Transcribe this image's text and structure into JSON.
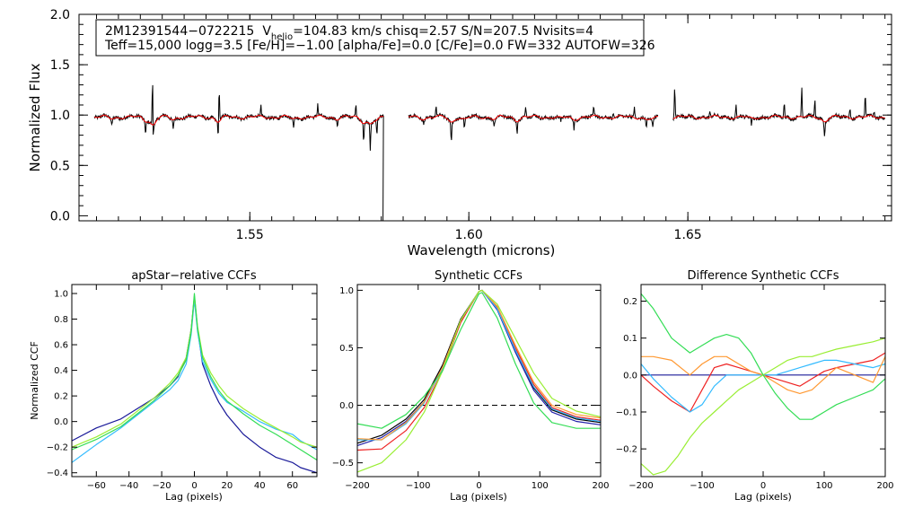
{
  "chart_data": [
    {
      "id": "spectrum",
      "type": "line",
      "title": "",
      "xlabel": "Wavelength (microns)",
      "ylabel": "Normalized Flux",
      "xlim": [
        1.511,
        1.6965
      ],
      "ylim": [
        -0.05,
        2.0
      ],
      "xticks": [
        1.55,
        1.6,
        1.65
      ],
      "xtick_labels": [
        "1.55",
        "1.60",
        "1.65"
      ],
      "yticks": [
        0.0,
        0.5,
        1.0,
        1.5,
        2.0
      ],
      "ytick_labels": [
        "0.0",
        "0.5",
        "1.0",
        "1.5",
        "2.0"
      ],
      "detectors": [
        [
          1.5145,
          1.5805
        ],
        [
          1.5862,
          1.6432
        ],
        [
          1.6466,
          1.695
        ]
      ],
      "annotation": {
        "line1_id": "2M12391544−0722215",
        "line1_v": "V",
        "line1_vsub": "helio",
        "line1_rest": "=104.83 km/s  chisq=2.57  S/N=207.5  Nvisits=4",
        "line2": "Teff=15,000 logg=3.5 [Fe/H]=−1.00 [alpha/Fe]=0.0 [C/Fe]=0.0 FW=332 AUTOFW=326"
      },
      "series": [
        {
          "name": "observed",
          "color": "#000000"
        },
        {
          "name": "model",
          "color": "#ff0000"
        }
      ],
      "features": [
        {
          "x": 1.5185,
          "depth": -0.05
        },
        {
          "x": 1.5262,
          "depth": -0.13
        },
        {
          "x": 1.5278,
          "depth": 0.6
        },
        {
          "x": 1.5279,
          "depth": -0.3
        },
        {
          "x": 1.5325,
          "depth": -0.1
        },
        {
          "x": 1.5428,
          "depth": -0.17
        },
        {
          "x": 1.543,
          "depth": 0.35
        },
        {
          "x": 1.5525,
          "depth": 0.1
        },
        {
          "x": 1.56,
          "depth": -0.08
        },
        {
          "x": 1.5655,
          "depth": 0.12
        },
        {
          "x": 1.57,
          "depth": -0.06
        },
        {
          "x": 1.5742,
          "depth": 0.12
        },
        {
          "x": 1.576,
          "depth": -0.18
        },
        {
          "x": 1.5775,
          "depth": -0.25
        },
        {
          "x": 1.579,
          "depth": -0.15
        },
        {
          "x": 1.5897,
          "depth": -0.05
        },
        {
          "x": 1.5925,
          "depth": 0.1
        },
        {
          "x": 1.596,
          "depth": -0.2
        },
        {
          "x": 1.599,
          "depth": -0.1
        },
        {
          "x": 1.6058,
          "depth": -0.07
        },
        {
          "x": 1.611,
          "depth": -0.11
        },
        {
          "x": 1.613,
          "depth": 0.1
        },
        {
          "x": 1.621,
          "depth": -0.06
        },
        {
          "x": 1.624,
          "depth": -0.09
        },
        {
          "x": 1.6285,
          "depth": 0.08
        },
        {
          "x": 1.633,
          "depth": 0.06
        },
        {
          "x": 1.6378,
          "depth": 0.12
        },
        {
          "x": 1.6405,
          "depth": -0.08
        },
        {
          "x": 1.642,
          "depth": -0.1
        },
        {
          "x": 1.647,
          "depth": 0.3
        },
        {
          "x": 1.655,
          "depth": 0.06
        },
        {
          "x": 1.661,
          "depth": 0.12
        },
        {
          "x": 1.6645,
          "depth": -0.07
        },
        {
          "x": 1.672,
          "depth": 0.15
        },
        {
          "x": 1.676,
          "depth": 0.3
        },
        {
          "x": 1.679,
          "depth": 0.18
        },
        {
          "x": 1.6812,
          "depth": -0.16
        },
        {
          "x": 1.687,
          "depth": 0.1
        },
        {
          "x": 1.6905,
          "depth": 0.22
        },
        {
          "x": 1.6925,
          "depth": 0.05
        }
      ],
      "gap_drop": {
        "x": 1.5804,
        "y": -0.05
      }
    },
    {
      "id": "apstar_ccf",
      "type": "line",
      "title": "apStar−relative CCFs",
      "xlabel": "Lag (pixels)",
      "ylabel": "Normalized CCF",
      "xlim": [
        -75,
        75
      ],
      "ylim": [
        -0.43,
        1.07
      ],
      "xticks": [
        -60,
        -40,
        -20,
        0,
        20,
        40,
        60
      ],
      "xtick_labels": [
        "−60",
        "−40",
        "−20",
        "0",
        "20",
        "40",
        "60"
      ],
      "yticks": [
        -0.4,
        -0.2,
        0.0,
        0.2,
        0.4,
        0.6,
        0.8,
        1.0
      ],
      "ytick_labels": [
        "−0.4",
        "−0.2",
        "0.0",
        "0.2",
        "0.4",
        "0.6",
        "0.8",
        "1.0"
      ],
      "series": [
        {
          "name": "visit 1",
          "color": "#1a1a99",
          "x": [
            -75,
            -60,
            -45,
            -35,
            -25,
            -15,
            -10,
            -5,
            -2,
            0,
            2,
            5,
            10,
            15,
            20,
            30,
            40,
            50,
            60,
            65,
            75
          ],
          "y": [
            -0.15,
            -0.05,
            0.02,
            0.1,
            0.18,
            0.28,
            0.35,
            0.5,
            0.72,
            0.97,
            0.72,
            0.45,
            0.28,
            0.15,
            0.05,
            -0.1,
            -0.2,
            -0.28,
            -0.32,
            -0.36,
            -0.4
          ]
        },
        {
          "name": "visit 2",
          "color": "#33bbff",
          "x": [
            -75,
            -60,
            -45,
            -35,
            -25,
            -15,
            -10,
            -5,
            -2,
            0,
            2,
            5,
            10,
            15,
            20,
            30,
            40,
            50,
            60,
            65,
            75
          ],
          "y": [
            -0.32,
            -0.18,
            -0.05,
            0.05,
            0.15,
            0.25,
            0.32,
            0.45,
            0.68,
            0.95,
            0.7,
            0.47,
            0.33,
            0.22,
            0.15,
            0.08,
            0.0,
            -0.06,
            -0.1,
            -0.15,
            -0.22
          ]
        },
        {
          "name": "visit 3",
          "color": "#99ee33",
          "x": [
            -75,
            -60,
            -45,
            -35,
            -25,
            -15,
            -10,
            -5,
            -2,
            0,
            2,
            5,
            10,
            15,
            20,
            30,
            40,
            50,
            60,
            65,
            75
          ],
          "y": [
            -0.2,
            -0.12,
            -0.02,
            0.08,
            0.18,
            0.3,
            0.38,
            0.5,
            0.72,
            0.98,
            0.74,
            0.52,
            0.38,
            0.28,
            0.2,
            0.1,
            0.02,
            -0.05,
            -0.12,
            -0.16,
            -0.2
          ]
        },
        {
          "name": "visit 4",
          "color": "#33dd55",
          "x": [
            -75,
            -60,
            -45,
            -35,
            -25,
            -15,
            -10,
            -5,
            -2,
            0,
            2,
            5,
            10,
            15,
            20,
            30,
            40,
            50,
            60,
            65,
            75
          ],
          "y": [
            -0.22,
            -0.14,
            -0.04,
            0.06,
            0.16,
            0.28,
            0.36,
            0.48,
            0.7,
            1.0,
            0.72,
            0.5,
            0.35,
            0.24,
            0.16,
            0.06,
            -0.03,
            -0.1,
            -0.18,
            -0.22,
            -0.3
          ]
        }
      ]
    },
    {
      "id": "synthetic_ccf",
      "type": "line",
      "title": "Synthetic CCFs",
      "xlabel": "Lag (pixels)",
      "ylabel": "",
      "xlim": [
        -200,
        200
      ],
      "ylim": [
        -0.62,
        1.05
      ],
      "xticks": [
        -200,
        -100,
        0,
        100,
        200
      ],
      "xtick_labels": [
        "−200",
        "−100",
        "0",
        "100",
        "200"
      ],
      "yticks": [
        -0.5,
        0.0,
        0.5,
        1.0
      ],
      "ytick_labels": [
        "−0.5",
        "0.0",
        "0.5",
        "1.0"
      ],
      "zero_line": 0.0,
      "series": [
        {
          "name": "synth 1",
          "color": "#000000",
          "x": [
            -200,
            -160,
            -120,
            -90,
            -60,
            -30,
            0,
            5,
            30,
            60,
            90,
            120,
            160,
            200
          ],
          "y": [
            -0.33,
            -0.26,
            -0.12,
            0.05,
            0.35,
            0.75,
            0.99,
            1.0,
            0.84,
            0.48,
            0.15,
            -0.04,
            -0.12,
            -0.15
          ]
        },
        {
          "name": "synth 2",
          "color": "#2222aa",
          "x": [
            -200,
            -160,
            -120,
            -90,
            -60,
            -30,
            0,
            5,
            30,
            60,
            90,
            120,
            160,
            200
          ],
          "y": [
            -0.35,
            -0.28,
            -0.14,
            0.03,
            0.33,
            0.73,
            0.99,
            1.0,
            0.83,
            0.46,
            0.13,
            -0.06,
            -0.14,
            -0.17
          ]
        },
        {
          "name": "synth 3",
          "color": "#ee2222",
          "x": [
            -200,
            -160,
            -120,
            -90,
            -60,
            -30,
            0,
            5,
            30,
            60,
            90,
            120,
            160,
            200
          ],
          "y": [
            -0.39,
            -0.38,
            -0.22,
            -0.02,
            0.3,
            0.72,
            0.99,
            1.0,
            0.85,
            0.5,
            0.18,
            -0.02,
            -0.1,
            -0.13
          ]
        },
        {
          "name": "synth 4",
          "color": "#33bbff",
          "x": [
            -200,
            -160,
            -120,
            -90,
            -60,
            -30,
            0,
            5,
            30,
            60,
            90,
            120,
            160,
            200
          ],
          "y": [
            -0.3,
            -0.3,
            -0.16,
            0.02,
            0.32,
            0.74,
            0.99,
            1.0,
            0.84,
            0.48,
            0.16,
            -0.03,
            -0.11,
            -0.14
          ]
        },
        {
          "name": "synth 5",
          "color": "#ff9933",
          "x": [
            -200,
            -160,
            -120,
            -90,
            -60,
            -30,
            0,
            5,
            30,
            60,
            90,
            120,
            160,
            200
          ],
          "y": [
            -0.29,
            -0.3,
            -0.15,
            0.03,
            0.33,
            0.74,
            0.99,
            1.0,
            0.86,
            0.52,
            0.2,
            0.0,
            -0.08,
            -0.11
          ]
        },
        {
          "name": "synth 6",
          "color": "#99ee33",
          "x": [
            -200,
            -160,
            -120,
            -90,
            -60,
            -30,
            0,
            5,
            30,
            60,
            90,
            120,
            160,
            200
          ],
          "y": [
            -0.58,
            -0.5,
            -0.3,
            -0.06,
            0.3,
            0.74,
            0.99,
            1.0,
            0.88,
            0.58,
            0.28,
            0.06,
            -0.05,
            -0.1
          ]
        },
        {
          "name": "synth 7",
          "color": "#33dd55",
          "x": [
            -200,
            -160,
            -120,
            -90,
            -60,
            -30,
            0,
            5,
            30,
            60,
            90,
            120,
            160,
            200
          ],
          "y": [
            -0.16,
            -0.2,
            -0.08,
            0.08,
            0.3,
            0.66,
            0.97,
            0.98,
            0.76,
            0.36,
            0.02,
            -0.15,
            -0.2,
            -0.2
          ]
        }
      ]
    },
    {
      "id": "diff_ccf",
      "type": "line",
      "title": "Difference Synthetic CCFs",
      "xlabel": "Lag (pixels)",
      "ylabel": "",
      "xlim": [
        -200,
        200
      ],
      "ylim": [
        -0.275,
        0.245
      ],
      "xticks": [
        -200,
        -100,
        0,
        100,
        200
      ],
      "xtick_labels": [
        "−200",
        "−100",
        "0",
        "100",
        "200"
      ],
      "yticks": [
        -0.2,
        -0.1,
        0.0,
        0.1,
        0.2
      ],
      "ytick_labels": [
        "−0.2",
        "−0.1",
        "0.0",
        "0.1",
        "0.2"
      ],
      "series": [
        {
          "name": "diff 1",
          "color": "#1a1a99",
          "x": [
            -200,
            200
          ],
          "y": [
            0.0,
            0.0
          ]
        },
        {
          "name": "diff 2",
          "color": "#ee2222",
          "x": [
            -200,
            -180,
            -150,
            -120,
            -100,
            -80,
            -60,
            -40,
            -20,
            0,
            20,
            40,
            60,
            80,
            100,
            120,
            150,
            180,
            200
          ],
          "y": [
            0.0,
            -0.03,
            -0.07,
            -0.1,
            -0.04,
            0.02,
            0.03,
            0.02,
            0.01,
            0.0,
            -0.01,
            -0.02,
            -0.03,
            -0.01,
            0.01,
            0.02,
            0.03,
            0.04,
            0.06
          ]
        },
        {
          "name": "diff 3",
          "color": "#33bbff",
          "x": [
            -200,
            -180,
            -150,
            -120,
            -100,
            -80,
            -60,
            -40,
            -20,
            0,
            20,
            40,
            60,
            80,
            100,
            120,
            150,
            180,
            200
          ],
          "y": [
            0.03,
            -0.01,
            -0.06,
            -0.1,
            -0.08,
            -0.03,
            0.0,
            0.0,
            0.0,
            0.0,
            0.0,
            0.01,
            0.02,
            0.03,
            0.04,
            0.04,
            0.03,
            0.02,
            0.03
          ]
        },
        {
          "name": "diff 4",
          "color": "#ff9933",
          "x": [
            -200,
            -180,
            -150,
            -120,
            -100,
            -80,
            -60,
            -40,
            -20,
            0,
            20,
            40,
            60,
            80,
            100,
            120,
            150,
            180,
            200
          ],
          "y": [
            0.05,
            0.05,
            0.04,
            0.0,
            0.03,
            0.05,
            0.05,
            0.03,
            0.01,
            0.0,
            -0.02,
            -0.04,
            -0.05,
            -0.04,
            -0.01,
            0.02,
            0.0,
            -0.02,
            0.05
          ]
        },
        {
          "name": "diff 5",
          "color": "#99ee33",
          "x": [
            -200,
            -180,
            -160,
            -140,
            -120,
            -100,
            -80,
            -60,
            -40,
            -20,
            0,
            20,
            40,
            60,
            80,
            100,
            120,
            150,
            180,
            200
          ],
          "y": [
            -0.24,
            -0.27,
            -0.26,
            -0.22,
            -0.17,
            -0.13,
            -0.1,
            -0.07,
            -0.04,
            -0.02,
            0.0,
            0.02,
            0.04,
            0.05,
            0.05,
            0.06,
            0.07,
            0.08,
            0.09,
            0.1
          ]
        },
        {
          "name": "diff 6",
          "color": "#33dd55",
          "x": [
            -200,
            -180,
            -150,
            -120,
            -100,
            -80,
            -60,
            -40,
            -20,
            0,
            20,
            40,
            60,
            80,
            100,
            120,
            150,
            180,
            200
          ],
          "y": [
            0.22,
            0.18,
            0.1,
            0.06,
            0.08,
            0.1,
            0.11,
            0.1,
            0.06,
            0.0,
            -0.05,
            -0.09,
            -0.12,
            -0.12,
            -0.1,
            -0.08,
            -0.06,
            -0.04,
            -0.01
          ]
        }
      ]
    }
  ]
}
